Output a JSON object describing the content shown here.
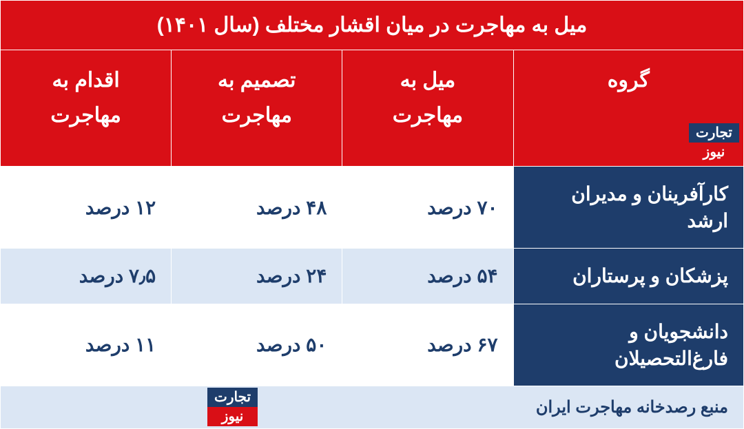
{
  "colors": {
    "header_bg": "#d90f16",
    "header_fg": "#ffffff",
    "group_bg": "#1e3d6b",
    "group_fg": "#ffffff",
    "row_even_bg": "#ffffff",
    "row_odd_bg": "#dbe6f4",
    "val_fg": "#1e3d6b",
    "source_bg": "#dbe6f4",
    "source_fg": "#1e3d6b",
    "logo_top_bg": "#1e3d6b",
    "logo_top_fg": "#ffffff",
    "logo_bot_bg": "#d90f16",
    "logo_bot_fg": "#ffffff"
  },
  "title": "میل به مهاجرت در میان اقشار مختلف (سال ۱۴۰۱)",
  "columns": {
    "group": "گروه",
    "desire": "میل به\nمهاجرت",
    "decision": "تصمیم به\nمهاجرت",
    "action": "اقدام به\nمهاجرت"
  },
  "rows": [
    {
      "group": "کارآفرینان و مدیران ارشد",
      "desire": "۷۰ درصد",
      "decision": "۴۸ درصد",
      "action": "۱۲ درصد"
    },
    {
      "group": "پزشکان و پرستاران",
      "desire": "۵۴ درصد",
      "decision": "۲۴ درصد",
      "action": "۷٫۵ درصد"
    },
    {
      "group": "دانشجویان و فارغ‌التحصیلان",
      "desire": "۶۷ درصد",
      "decision": "۵۰ درصد",
      "action": "۱۱ درصد"
    }
  ],
  "source": "منبع رصدخانه مهاجرت ایران",
  "logo": {
    "top": "تجارت",
    "bottom": "نیوز"
  },
  "col_widths_pct": [
    31,
    23,
    23,
    23
  ]
}
